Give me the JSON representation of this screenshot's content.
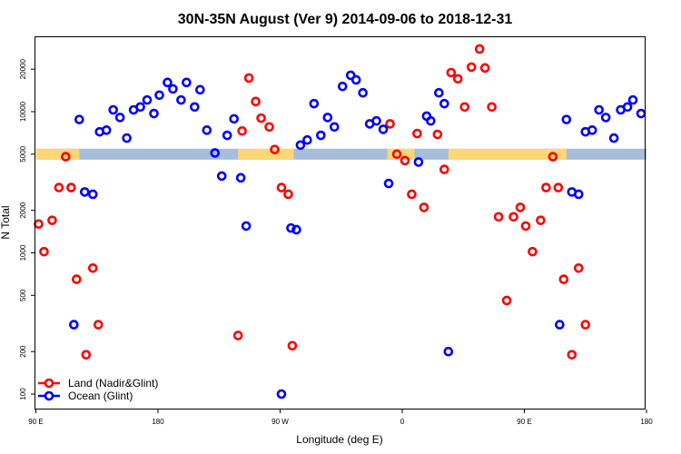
{
  "chart_data": {
    "type": "scatter",
    "title": "30N-35N August (Ver 9)   2014-09-06 to 2018-12-31",
    "xlabel": "Longitude (deg E)",
    "ylabel": "N Total",
    "x_units_note": "longitude unwrapped eastward (90 = 90E, 180 = 180, 270 = 90W, 360 = 0, 450 = 90E, 540 = 180)",
    "xlim": [
      90,
      540
    ],
    "ylim": [
      75,
      38000
    ],
    "yscale": "log",
    "xticks": [
      {
        "value": 90,
        "label": "90 E"
      },
      {
        "value": 180,
        "label": "180"
      },
      {
        "value": 270,
        "label": "90 W"
      },
      {
        "value": 360,
        "label": "0"
      },
      {
        "value": 450,
        "label": "90 E"
      },
      {
        "value": 540,
        "label": "180"
      }
    ],
    "yticks": [
      {
        "value": 100,
        "label": "100"
      },
      {
        "value": 200,
        "label": "200"
      },
      {
        "value": 500,
        "label": "500"
      },
      {
        "value": 1000,
        "label": "1000"
      },
      {
        "value": 2000,
        "label": "2000"
      },
      {
        "value": 5000,
        "label": "5000"
      },
      {
        "value": 10000,
        "label": "10000"
      },
      {
        "value": 20000,
        "label": "20000"
      }
    ],
    "legend_position": "bottom-left",
    "band": {
      "value": 5000,
      "ocean_color": "#a6bddb",
      "land_color": "#fdd775",
      "land_segments": [
        [
          90,
          122
        ],
        [
          239,
          280
        ],
        [
          349,
          369
        ],
        [
          394,
          481
        ]
      ]
    },
    "series": [
      {
        "name": "Land (Nadir&Glint)",
        "color": "#ff0000",
        "points": [
          [
            92,
            1600
          ],
          [
            96,
            1020
          ],
          [
            102,
            1700
          ],
          [
            107,
            2900
          ],
          [
            112,
            4800
          ],
          [
            116,
            2900
          ],
          [
            120,
            650
          ],
          [
            127,
            190
          ],
          [
            132,
            780
          ],
          [
            136,
            310
          ],
          [
            239,
            260
          ],
          [
            242,
            7300
          ],
          [
            247,
            17300
          ],
          [
            252,
            11800
          ],
          [
            256,
            9000
          ],
          [
            262,
            7800
          ],
          [
            266,
            5400
          ],
          [
            271,
            2900
          ],
          [
            276,
            2600
          ],
          [
            279,
            220
          ],
          [
            351,
            8200
          ],
          [
            356,
            5000
          ],
          [
            362,
            4500
          ],
          [
            367,
            2600
          ],
          [
            371,
            7000
          ],
          [
            376,
            2100
          ],
          [
            386,
            6900
          ],
          [
            391,
            3900
          ],
          [
            396,
            18900
          ],
          [
            401,
            17100
          ],
          [
            406,
            10800
          ],
          [
            411,
            20700
          ],
          [
            417,
            27800
          ],
          [
            421,
            20400
          ],
          [
            426,
            10800
          ],
          [
            431,
            1800
          ],
          [
            437,
            460
          ],
          [
            442,
            1800
          ],
          [
            447,
            2100
          ],
          [
            451,
            1550
          ],
          [
            456,
            1020
          ],
          [
            462,
            1700
          ],
          [
            466,
            2900
          ],
          [
            471,
            4800
          ],
          [
            475,
            2900
          ],
          [
            479,
            650
          ],
          [
            485,
            190
          ],
          [
            490,
            780
          ],
          [
            495,
            310
          ]
        ]
      },
      {
        "name": "Ocean (Glint)",
        "color": "#0000ff",
        "points": [
          [
            118,
            310
          ],
          [
            122,
            8800
          ],
          [
            126,
            2700
          ],
          [
            132,
            2600
          ],
          [
            137,
            7200
          ],
          [
            142,
            7400
          ],
          [
            147,
            10300
          ],
          [
            152,
            9100
          ],
          [
            157,
            6500
          ],
          [
            162,
            10300
          ],
          [
            167,
            10800
          ],
          [
            172,
            12100
          ],
          [
            177,
            9700
          ],
          [
            181,
            13100
          ],
          [
            187,
            16100
          ],
          [
            191,
            14500
          ],
          [
            197,
            12100
          ],
          [
            201,
            16100
          ],
          [
            207,
            10800
          ],
          [
            211,
            14300
          ],
          [
            216,
            7400
          ],
          [
            222,
            5100
          ],
          [
            227,
            3500
          ],
          [
            231,
            6800
          ],
          [
            236,
            8900
          ],
          [
            241,
            3400
          ],
          [
            245,
            1550
          ],
          [
            271,
            100
          ],
          [
            278,
            1500
          ],
          [
            282,
            1460
          ],
          [
            285,
            5800
          ],
          [
            290,
            6300
          ],
          [
            295,
            11400
          ],
          [
            300,
            6800
          ],
          [
            305,
            9100
          ],
          [
            310,
            7800
          ],
          [
            316,
            15100
          ],
          [
            322,
            18100
          ],
          [
            326,
            16800
          ],
          [
            331,
            13600
          ],
          [
            336,
            8200
          ],
          [
            341,
            8600
          ],
          [
            346,
            7500
          ],
          [
            350,
            3100
          ],
          [
            372,
            4400
          ],
          [
            378,
            9300
          ],
          [
            381,
            8600
          ],
          [
            387,
            13600
          ],
          [
            391,
            11400
          ],
          [
            394,
            200
          ],
          [
            476,
            310
          ],
          [
            481,
            8800
          ],
          [
            485,
            2700
          ],
          [
            490,
            2600
          ],
          [
            495,
            7200
          ],
          [
            500,
            7400
          ],
          [
            505,
            10300
          ],
          [
            510,
            9100
          ],
          [
            516,
            6500
          ],
          [
            521,
            10300
          ],
          [
            526,
            10800
          ],
          [
            530,
            12100
          ],
          [
            536,
            9700
          ]
        ]
      }
    ]
  }
}
